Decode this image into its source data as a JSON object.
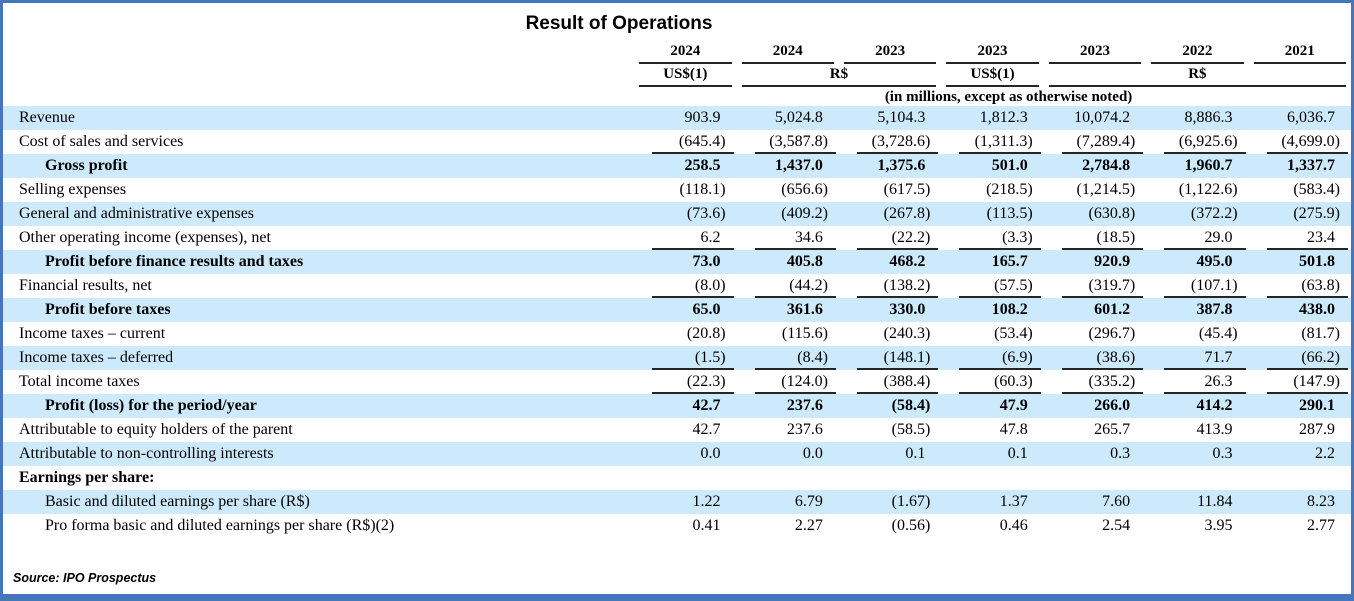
{
  "title": "Result of Operations",
  "header": {
    "years": [
      "2024",
      "2024",
      "2023",
      "2023",
      "2023",
      "2022",
      "2021"
    ],
    "currency_groups": [
      {
        "label": "US$(1)",
        "span": 1
      },
      {
        "label": "R$",
        "span": 2
      },
      {
        "label": "US$(1)",
        "span": 1
      },
      {
        "label": "R$",
        "span": 3
      }
    ],
    "unit_note": "(in millions, except as otherwise noted)"
  },
  "rows": [
    {
      "label": "Revenue",
      "values": [
        "903.9",
        "5,024.8",
        "5,104.3",
        "1,812.3",
        "10,074.2",
        "8,886.3",
        "6,036.7"
      ],
      "bold": false,
      "indent": false,
      "rule_below": false
    },
    {
      "label": "Cost of sales and services",
      "values": [
        "(645.4)",
        "(3,587.8)",
        "(3,728.6)",
        "(1,311.3)",
        "(7,289.4)",
        "(6,925.6)",
        "(4,699.0)"
      ],
      "bold": false,
      "indent": false,
      "rule_below": true
    },
    {
      "label": "Gross profit",
      "values": [
        "258.5",
        "1,437.0",
        "1,375.6",
        "501.0",
        "2,784.8",
        "1,960.7",
        "1,337.7"
      ],
      "bold": true,
      "indent": true,
      "rule_below": false
    },
    {
      "label": "Selling expenses",
      "values": [
        "(118.1)",
        "(656.6)",
        "(617.5)",
        "(218.5)",
        "(1,214.5)",
        "(1,122.6)",
        "(583.4)"
      ],
      "bold": false,
      "indent": false,
      "rule_below": false
    },
    {
      "label": "General and administrative expenses",
      "values": [
        "(73.6)",
        "(409.2)",
        "(267.8)",
        "(113.5)",
        "(630.8)",
        "(372.2)",
        "(275.9)"
      ],
      "bold": false,
      "indent": false,
      "rule_below": false
    },
    {
      "label": "Other operating income (expenses), net",
      "values": [
        "6.2",
        "34.6",
        "(22.2)",
        "(3.3)",
        "(18.5)",
        "29.0",
        "23.4"
      ],
      "bold": false,
      "indent": false,
      "rule_below": true
    },
    {
      "label": "Profit before finance results and taxes",
      "values": [
        "73.0",
        "405.8",
        "468.2",
        "165.7",
        "920.9",
        "495.0",
        "501.8"
      ],
      "bold": true,
      "indent": true,
      "rule_below": false
    },
    {
      "label": "Financial results, net",
      "values": [
        "(8.0)",
        "(44.2)",
        "(138.2)",
        "(57.5)",
        "(319.7)",
        "(107.1)",
        "(63.8)"
      ],
      "bold": false,
      "indent": false,
      "rule_below": true
    },
    {
      "label": "Profit before taxes",
      "values": [
        "65.0",
        "361.6",
        "330.0",
        "108.2",
        "601.2",
        "387.8",
        "438.0"
      ],
      "bold": true,
      "indent": true,
      "rule_below": false
    },
    {
      "label": "Income taxes – current",
      "values": [
        "(20.8)",
        "(115.6)",
        "(240.3)",
        "(53.4)",
        "(296.7)",
        "(45.4)",
        "(81.7)"
      ],
      "bold": false,
      "indent": false,
      "rule_below": false
    },
    {
      "label": "Income taxes – deferred",
      "values": [
        "(1.5)",
        "(8.4)",
        "(148.1)",
        "(6.9)",
        "(38.6)",
        "71.7",
        "(66.2)"
      ],
      "bold": false,
      "indent": false,
      "rule_below": true
    },
    {
      "label": "Total income taxes",
      "values": [
        "(22.3)",
        "(124.0)",
        "(388.4)",
        "(60.3)",
        "(335.2)",
        "26.3",
        "(147.9)"
      ],
      "bold": false,
      "indent": false,
      "rule_below": true
    },
    {
      "label": "Profit (loss) for the period/year",
      "values": [
        "42.7",
        "237.6",
        "(58.4)",
        "47.9",
        "266.0",
        "414.2",
        "290.1"
      ],
      "bold": true,
      "indent": true,
      "rule_below": false
    },
    {
      "label": "Attributable to equity holders of the parent",
      "values": [
        "42.7",
        "237.6",
        "(58.5)",
        "47.8",
        "265.7",
        "413.9",
        "287.9"
      ],
      "bold": false,
      "indent": false,
      "rule_below": false
    },
    {
      "label": "Attributable to non-controlling interests",
      "values": [
        "0.0",
        "0.0",
        "0.1",
        "0.1",
        "0.3",
        "0.3",
        "2.2"
      ],
      "bold": false,
      "indent": false,
      "rule_below": false
    },
    {
      "label": "Earnings per share:",
      "values": [],
      "bold": true,
      "indent": false,
      "rule_below": false
    },
    {
      "label": "Basic and diluted earnings per share (R$)",
      "values": [
        "1.22",
        "6.79",
        "(1.67)",
        "1.37",
        "7.60",
        "11.84",
        "8.23"
      ],
      "bold": false,
      "indent": true,
      "rule_below": false
    },
    {
      "label": "Pro forma basic and diluted earnings per share (R$)(2)",
      "values": [
        "0.41",
        "2.27",
        "(0.56)",
        "0.46",
        "2.54",
        "3.95",
        "2.77"
      ],
      "bold": false,
      "indent": true,
      "rule_below": false
    }
  ],
  "source": "Source: IPO Prospectus",
  "colors": {
    "row_shade": "#cdeafc",
    "frame_border": "#4576bd",
    "rule": "#262626"
  }
}
